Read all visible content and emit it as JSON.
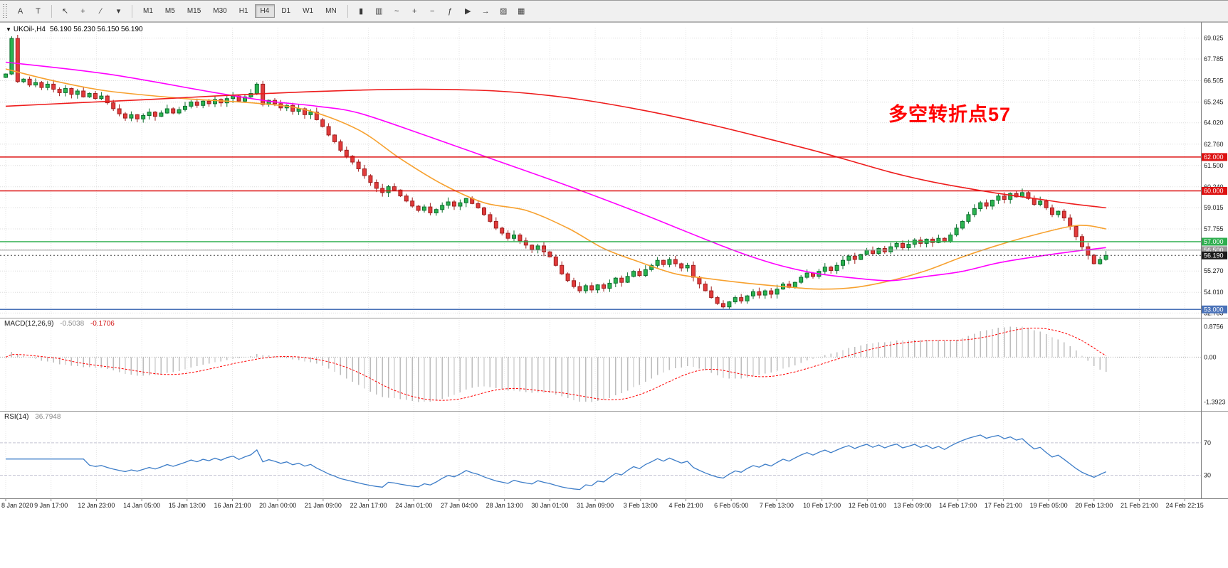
{
  "toolbar": {
    "left_buttons": [
      {
        "name": "text-tool-button",
        "glyph": "A"
      },
      {
        "name": "table-tool-button",
        "glyph": "T"
      }
    ],
    "pointer_buttons": [
      {
        "name": "cursor-tool-button",
        "glyph": "↖"
      },
      {
        "name": "crosshair-tool-button",
        "glyph": "+"
      },
      {
        "name": "trendline-tool-button",
        "glyph": "∕"
      },
      {
        "name": "draw-tools-dropdown",
        "glyph": "▾"
      }
    ],
    "timeframes": {
      "items": [
        "M1",
        "M5",
        "M15",
        "M30",
        "H1",
        "H4",
        "D1",
        "W1",
        "MN"
      ],
      "active": "H4"
    },
    "right_buttons": [
      {
        "name": "candles-view-button",
        "glyph": "▮"
      },
      {
        "name": "bars-view-button",
        "glyph": "▥"
      },
      {
        "name": "line-view-button",
        "glyph": "~"
      },
      {
        "name": "zoom-in-button",
        "glyph": "+"
      },
      {
        "name": "zoom-out-button",
        "glyph": "−"
      },
      {
        "name": "indicators-button",
        "glyph": "ƒ"
      },
      {
        "name": "autoscroll-button",
        "glyph": "▶"
      },
      {
        "name": "chart-shift-button",
        "glyph": "→"
      },
      {
        "name": "templates-button",
        "glyph": "▨"
      },
      {
        "name": "grid-button",
        "glyph": "▦"
      }
    ]
  },
  "chart": {
    "header": {
      "collapse_glyph": "▼",
      "symbol": "UKOil-,H4",
      "ohlc": "56.190 56.230 56.150 56.190"
    },
    "annotation": {
      "text": "多空转折点57",
      "color": "#ff0000"
    },
    "price_scale": {
      "ticks": [
        "69.025",
        "67.785",
        "66.505",
        "65.245",
        "64.020",
        "62.760",
        "61.500",
        "60.240",
        "59.015",
        "57.755",
        "56.530",
        "55.270",
        "54.010",
        "52.785"
      ]
    },
    "hlines": [
      {
        "price": 62.0,
        "label": "62.000",
        "color": "#dd1111"
      },
      {
        "price": 60.0,
        "label": "60.000",
        "color": "#dd1111"
      },
      {
        "price": 57.0,
        "label": "57.000",
        "color": "#2eae4e"
      },
      {
        "price": 56.5,
        "label": "56.500",
        "color": "#9a9a9a"
      },
      {
        "price": 53.0,
        "label": "53.000",
        "color": "#4a72b8"
      }
    ],
    "current_price": {
      "value": 56.19,
      "label": "56.190",
      "color": "#1a1a1a"
    },
    "candles": {
      "up_fill": "#2ab34f",
      "up_stroke": "#0c6e2e",
      "down_fill": "#e23b3b",
      "down_stroke": "#9e1f1f",
      "closes": [
        66.9,
        69.0,
        66.45,
        66.6,
        66.25,
        66.4,
        66.1,
        66.3,
        66.0,
        65.8,
        66.05,
        65.7,
        65.9,
        65.55,
        65.75,
        65.45,
        65.6,
        65.2,
        64.85,
        64.55,
        64.3,
        64.5,
        64.25,
        64.45,
        64.65,
        64.4,
        64.6,
        64.85,
        64.6,
        64.8,
        65.0,
        65.25,
        65.05,
        65.3,
        65.15,
        65.4,
        65.2,
        65.45,
        65.6,
        65.3,
        65.55,
        65.75,
        66.3,
        65.1,
        65.35,
        65.15,
        64.9,
        65.05,
        64.7,
        64.85,
        64.5,
        64.65,
        64.2,
        63.8,
        63.3,
        62.9,
        62.4,
        62.05,
        61.7,
        61.3,
        60.9,
        60.5,
        60.15,
        59.9,
        60.25,
        60.05,
        59.7,
        59.4,
        59.1,
        58.85,
        59.05,
        58.7,
        58.9,
        59.15,
        59.35,
        59.1,
        59.3,
        59.55,
        59.25,
        59.0,
        58.6,
        58.2,
        57.8,
        57.5,
        57.2,
        57.4,
        57.05,
        56.8,
        56.55,
        56.75,
        56.4,
        56.1,
        55.6,
        55.1,
        54.7,
        54.35,
        54.1,
        54.4,
        54.15,
        54.45,
        54.25,
        54.55,
        54.85,
        54.6,
        54.95,
        55.25,
        55.0,
        55.35,
        55.6,
        55.9,
        55.65,
        55.95,
        55.7,
        55.45,
        55.6,
        54.9,
        54.5,
        54.1,
        53.7,
        53.35,
        53.15,
        53.45,
        53.7,
        53.5,
        53.8,
        54.05,
        53.85,
        54.1,
        53.9,
        54.2,
        54.5,
        54.3,
        54.6,
        54.9,
        55.15,
        54.95,
        55.25,
        55.5,
        55.3,
        55.6,
        55.9,
        56.15,
        55.95,
        56.25,
        56.5,
        56.3,
        56.6,
        56.4,
        56.7,
        56.9,
        56.65,
        56.85,
        57.1,
        56.9,
        57.15,
        56.95,
        57.2,
        57.0,
        57.4,
        57.8,
        58.2,
        58.6,
        58.95,
        59.3,
        59.1,
        59.45,
        59.7,
        59.5,
        59.85,
        59.65,
        59.9,
        59.55,
        59.2,
        59.4,
        59.0,
        58.6,
        58.8,
        58.4,
        57.9,
        57.3,
        56.7,
        56.2,
        55.7,
        55.95,
        56.19
      ]
    },
    "mas": [
      {
        "name": "ma-fast-orange",
        "color": "#f7a12f",
        "points": [
          [
            0,
            67.2
          ],
          [
            8,
            66.5
          ],
          [
            17,
            65.9
          ],
          [
            30,
            65.45
          ],
          [
            41,
            65.2
          ],
          [
            50,
            64.8
          ],
          [
            59,
            63.6
          ],
          [
            66,
            61.9
          ],
          [
            73,
            60.4
          ],
          [
            80,
            59.3
          ],
          [
            87,
            58.85
          ],
          [
            94,
            57.8
          ],
          [
            100,
            56.6
          ],
          [
            106,
            55.8
          ],
          [
            112,
            55.1
          ],
          [
            118,
            54.8
          ],
          [
            124,
            54.55
          ],
          [
            130,
            54.35
          ],
          [
            136,
            54.2
          ],
          [
            142,
            54.3
          ],
          [
            148,
            54.7
          ],
          [
            154,
            55.3
          ],
          [
            160,
            56.1
          ],
          [
            166,
            56.8
          ],
          [
            172,
            57.4
          ],
          [
            178,
            57.9
          ],
          [
            181,
            57.95
          ],
          [
            184,
            57.75
          ]
        ]
      },
      {
        "name": "ma-mid-magenta",
        "color": "#ff00ff",
        "points": [
          [
            0,
            67.6
          ],
          [
            17,
            66.9
          ],
          [
            35,
            65.8
          ],
          [
            44,
            65.3
          ],
          [
            52,
            65.0
          ],
          [
            59,
            64.6
          ],
          [
            70,
            63.3
          ],
          [
            82,
            61.8
          ],
          [
            94,
            60.3
          ],
          [
            106,
            58.7
          ],
          [
            112,
            57.85
          ],
          [
            118,
            57.0
          ],
          [
            124,
            56.2
          ],
          [
            130,
            55.55
          ],
          [
            136,
            55.1
          ],
          [
            142,
            54.85
          ],
          [
            148,
            54.7
          ],
          [
            154,
            54.95
          ],
          [
            160,
            55.25
          ],
          [
            166,
            55.75
          ],
          [
            172,
            56.1
          ],
          [
            178,
            56.4
          ],
          [
            184,
            56.65
          ]
        ]
      },
      {
        "name": "ma-slow-red",
        "color": "#ee1c1c",
        "points": [
          [
            0,
            65.0
          ],
          [
            12,
            65.2
          ],
          [
            24,
            65.4
          ],
          [
            35,
            65.6
          ],
          [
            47,
            65.8
          ],
          [
            59,
            65.95
          ],
          [
            70,
            66.0
          ],
          [
            82,
            65.9
          ],
          [
            94,
            65.5
          ],
          [
            106,
            64.8
          ],
          [
            118,
            63.9
          ],
          [
            130,
            62.85
          ],
          [
            136,
            62.3
          ],
          [
            142,
            61.7
          ],
          [
            148,
            61.1
          ],
          [
            154,
            60.6
          ],
          [
            160,
            60.2
          ],
          [
            166,
            59.85
          ],
          [
            172,
            59.55
          ],
          [
            178,
            59.25
          ],
          [
            184,
            59.0
          ]
        ]
      }
    ],
    "time_axis": {
      "labels": [
        "8 Jan 2020",
        "9 Jan 17:00",
        "12 Jan 23:00",
        "14 Jan 05:00",
        "15 Jan 13:00",
        "16 Jan 21:00",
        "20 Jan 00:00",
        "21 Jan 09:00",
        "22 Jan 17:00",
        "24 Jan 01:00",
        "27 Jan 04:00",
        "28 Jan 13:00",
        "30 Jan 01:00",
        "31 Jan 09:00",
        "3 Feb 13:00",
        "4 Feb 21:00",
        "6 Feb 05:00",
        "7 Feb 13:00",
        "10 Feb 17:00",
        "12 Feb 01:00",
        "13 Feb 09:00",
        "14 Feb 17:00",
        "17 Feb 21:00",
        "19 Feb 05:00",
        "20 Feb 13:00",
        "21 Feb 21:00",
        "24 Feb 22:15"
      ]
    }
  },
  "macd": {
    "title": "MACD(12,26,9)",
    "value_main": "-0.5038",
    "value_signal": "-0.1706",
    "fast": 12,
    "slow": 26,
    "smoothing": 9,
    "scale": {
      "max_label": "0.8756",
      "zero_label": "0.00",
      "min_label": "-1.3923"
    },
    "bar_color": "#bdbdbd",
    "signal_color": "#ff0000"
  },
  "rsi": {
    "title": "RSI(14)",
    "value": "36.7948",
    "period": 14,
    "levels": [
      70,
      30
    ],
    "line_color": "#3d7dc8",
    "scale": {
      "upper_label": "70",
      "lower_label": "30"
    }
  }
}
